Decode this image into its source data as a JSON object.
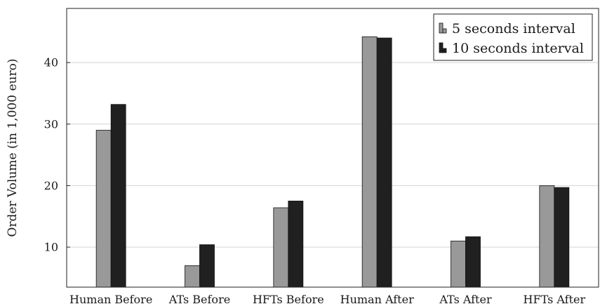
{
  "chart_data": {
    "type": "bar",
    "title": "",
    "xlabel": "",
    "ylabel": "Order Volume (in 1,000 euro)",
    "categories": [
      "Human Before",
      "ATs Before",
      "HFTs Before",
      "Human After",
      "ATs After",
      "HFTs After"
    ],
    "series": [
      {
        "name": "5 seconds interval",
        "color": "#999999",
        "values": [
          29.0,
          7.0,
          16.4,
          44.2,
          11.0,
          20.0
        ]
      },
      {
        "name": "10 seconds interval",
        "color": "#202020",
        "values": [
          33.2,
          10.4,
          17.5,
          44.0,
          11.7,
          19.7
        ]
      }
    ],
    "ylim": [
      3.5,
      48.8
    ],
    "yticks": [
      10,
      20,
      30,
      40
    ],
    "grid": true,
    "legend_position": "top-right"
  }
}
